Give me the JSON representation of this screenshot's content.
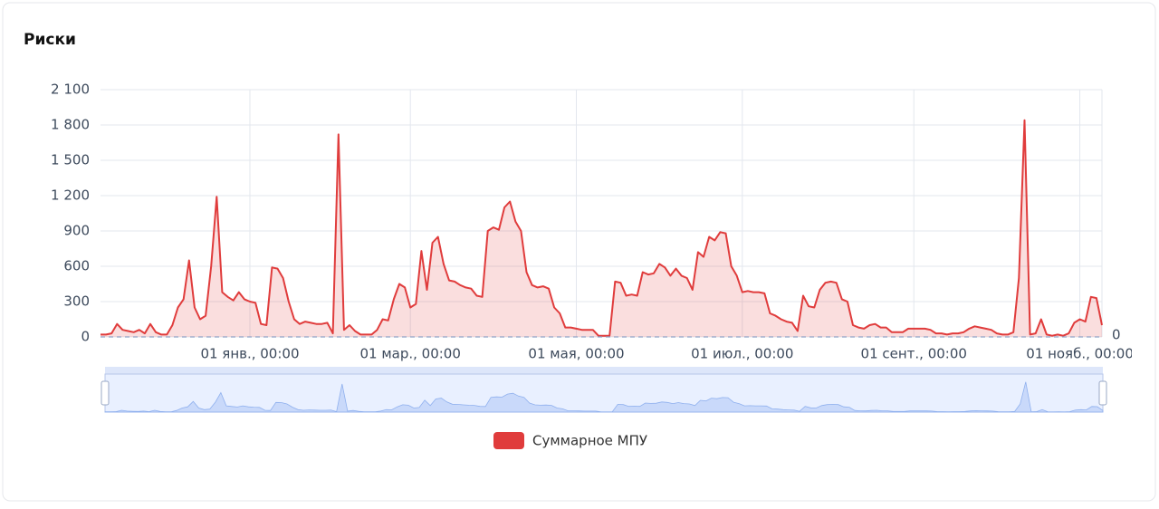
{
  "chart_data": {
    "type": "area",
    "title": "Риски",
    "categories": [
      null,
      null,
      null,
      null,
      null,
      null,
      null,
      null,
      null,
      null,
      null,
      null,
      null,
      null,
      null,
      null,
      null,
      null,
      null,
      null,
      null,
      null,
      null,
      null,
      null,
      null,
      null,
      "01 янв., 00:00",
      null,
      null,
      null,
      null,
      null,
      null,
      null,
      null,
      null,
      null,
      null,
      null,
      null,
      null,
      null,
      null,
      null,
      null,
      null,
      null,
      null,
      null,
      null,
      null,
      null,
      null,
      null,
      null,
      "01 мар., 00:00",
      null,
      null,
      null,
      null,
      null,
      null,
      null,
      null,
      null,
      null,
      null,
      null,
      null,
      null,
      null,
      null,
      null,
      null,
      null,
      null,
      null,
      null,
      null,
      null,
      null,
      null,
      null,
      null,
      null,
      "01 мая, 00:00",
      null,
      null,
      null,
      null,
      null,
      null,
      null,
      null,
      null,
      null,
      null,
      null,
      null,
      null,
      null,
      null,
      null,
      null,
      null,
      null,
      null,
      null,
      null,
      null,
      null,
      null,
      null,
      null,
      null,
      "01 июл., 00:00",
      null,
      null,
      null,
      null,
      null,
      null,
      null,
      null,
      null,
      null,
      null,
      null,
      null,
      null,
      null,
      null,
      null,
      null,
      null,
      null,
      null,
      null,
      null,
      null,
      null,
      null,
      null,
      null,
      null,
      null,
      "01 сент., 00:00",
      null,
      null,
      null,
      null,
      null,
      null,
      null,
      null,
      null,
      null,
      null,
      null,
      null,
      null,
      null,
      null,
      null,
      null,
      null,
      null,
      null,
      null,
      null,
      null,
      null,
      null,
      null,
      null,
      null,
      "01 нояб., 00:00",
      null,
      null,
      null,
      null
    ],
    "series": [
      {
        "name": "Суммарное МПУ",
        "color": "#e03c3c",
        "values": [
          20,
          20,
          30,
          110,
          60,
          50,
          40,
          60,
          30,
          110,
          40,
          20,
          20,
          100,
          250,
          320,
          650,
          250,
          150,
          180,
          600,
          1190,
          380,
          340,
          310,
          380,
          320,
          300,
          290,
          110,
          100,
          590,
          580,
          500,
          300,
          150,
          110,
          130,
          120,
          110,
          110,
          120,
          30,
          1720,
          60,
          100,
          50,
          20,
          20,
          20,
          60,
          150,
          140,
          320,
          450,
          420,
          250,
          280,
          730,
          400,
          800,
          850,
          620,
          480,
          470,
          440,
          420,
          410,
          350,
          340,
          900,
          930,
          910,
          1100,
          1150,
          980,
          900,
          550,
          440,
          420,
          430,
          410,
          250,
          200,
          80,
          80,
          70,
          60,
          60,
          60,
          10,
          10,
          10,
          470,
          460,
          350,
          360,
          350,
          550,
          530,
          540,
          620,
          590,
          520,
          580,
          520,
          500,
          400,
          720,
          680,
          850,
          820,
          890,
          880,
          600,
          520,
          380,
          390,
          380,
          380,
          370,
          200,
          180,
          150,
          130,
          120,
          50,
          350,
          260,
          250,
          400,
          460,
          470,
          460,
          320,
          300,
          100,
          80,
          70,
          100,
          110,
          80,
          80,
          40,
          40,
          40,
          70,
          70,
          70,
          70,
          60,
          30,
          30,
          20,
          30,
          30,
          40,
          70,
          90,
          80,
          70,
          60,
          30,
          20,
          20,
          40,
          500,
          1840,
          20,
          30,
          150,
          20,
          10,
          20,
          10,
          30,
          120,
          150,
          130,
          340,
          330,
          100
        ]
      }
    ],
    "ylim": [
      0,
      2100
    ],
    "yticks": [
      0,
      300,
      600,
      900,
      {
        "value": 1200,
        "label": "1 200"
      },
      {
        "value": 1500,
        "label": "1 500"
      },
      {
        "value": 1800,
        "label": "1 800"
      },
      {
        "value": 2100,
        "label": "2 100"
      }
    ],
    "mark_line": 0,
    "grid": true
  }
}
